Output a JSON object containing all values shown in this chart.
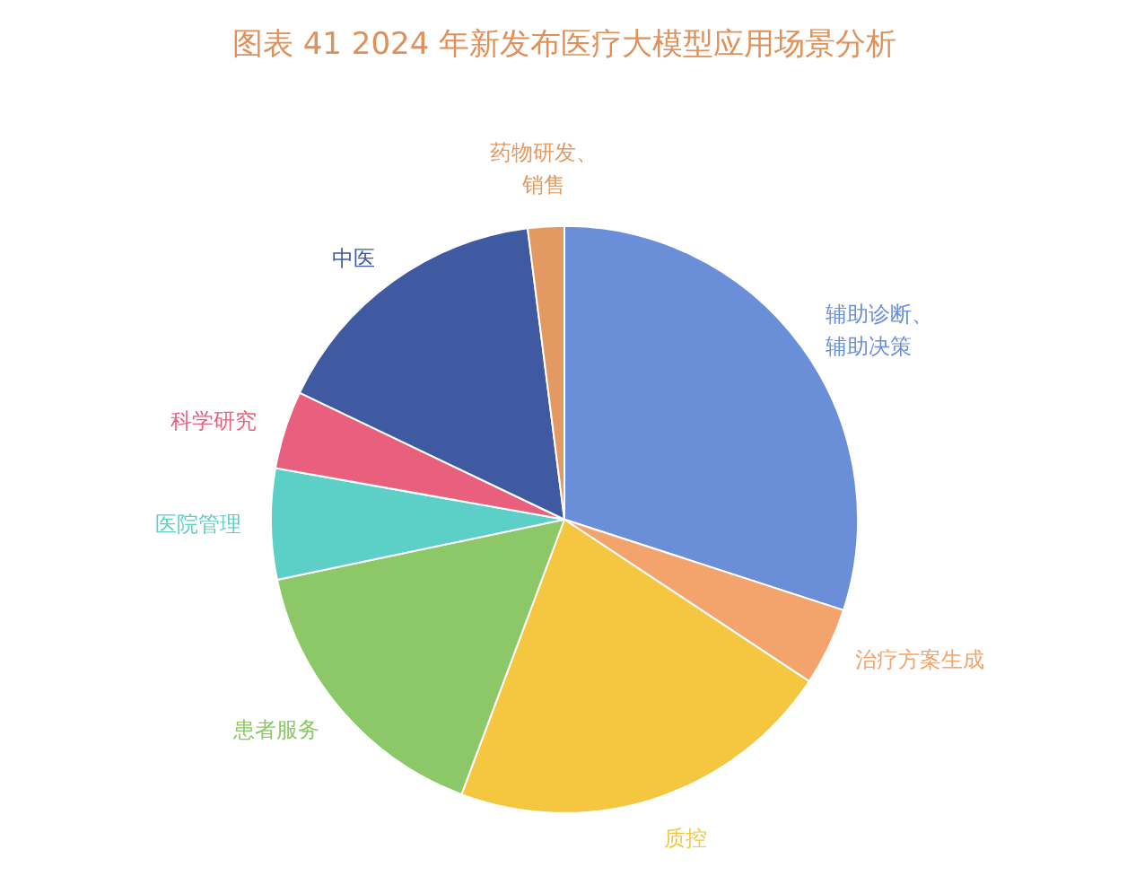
{
  "chart_data": {
    "type": "pie",
    "title": "图表 41 2024 年新发布医疗大模型应用场景分析",
    "categories": [
      "辅助诊断、辅助决策",
      "治疗方案生成",
      "质控",
      "患者服务",
      "医院管理",
      "科学研究",
      "中医",
      "药物研发、销售"
    ],
    "values": [
      30,
      4.3,
      21.4,
      16,
      6.1,
      4.3,
      15.9,
      2
    ],
    "colors": [
      "#6a8fd8",
      "#f2a46c",
      "#f5c640",
      "#8cc868",
      "#5ccfc6",
      "#e8607e",
      "#3f5aa0",
      "#e39a62"
    ]
  }
}
